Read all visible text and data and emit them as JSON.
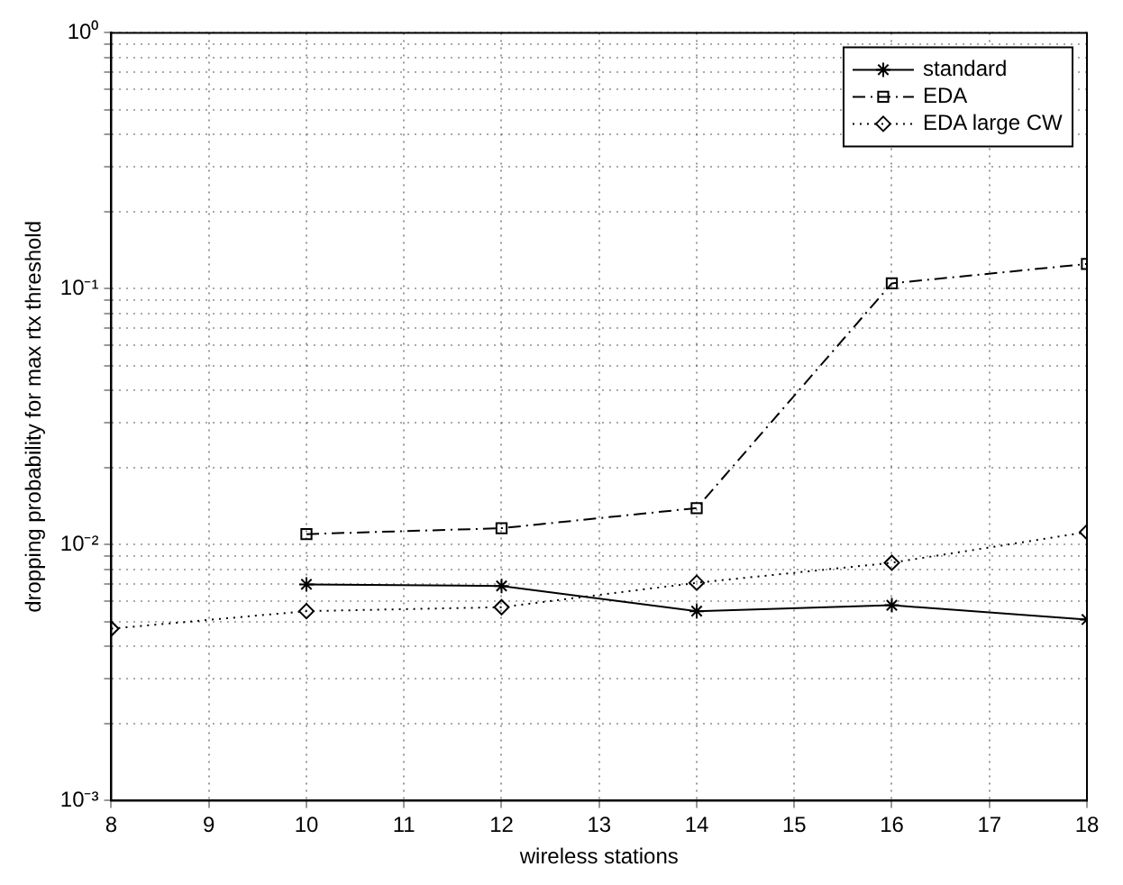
{
  "chart_data": {
    "type": "line",
    "xlabel": "wireless stations",
    "ylabel": "dropping probability for max rtx threshold",
    "x": [
      8,
      10,
      12,
      14,
      16,
      18
    ],
    "series": [
      {
        "name": "standard",
        "color": "#000000",
        "marker": "cross",
        "line_style": "solid",
        "values": [
          null,
          0.007,
          0.0069,
          0.0055,
          0.0058,
          0.0051
        ]
      },
      {
        "name": "EDA",
        "color": "#000000",
        "marker": "square",
        "line_style": "dashed",
        "values": [
          null,
          0.011,
          0.0116,
          0.0139,
          0.105,
          0.125
        ]
      },
      {
        "name": "EDA large CW",
        "color": "#000000",
        "marker": "diamond",
        "line_style": "dotted",
        "values": [
          0.0047,
          0.0055,
          0.0057,
          0.0071,
          0.0085,
          0.0112
        ]
      }
    ],
    "xlim": [
      8,
      18
    ],
    "xticks": [
      8,
      9,
      10,
      11,
      12,
      13,
      14,
      15,
      16,
      17,
      18
    ],
    "ylim": [
      0.001,
      1
    ],
    "log": "y",
    "yticks": [
      {
        "value": 0.001,
        "label": "10⁻³"
      },
      {
        "value": 0.002,
        "label": null
      },
      {
        "value": 0.003,
        "label": null
      },
      {
        "value": 0.004,
        "label": null
      },
      {
        "value": 0.005,
        "label": null
      },
      {
        "value": 0.006,
        "label": null
      },
      {
        "value": 0.007,
        "label": null
      },
      {
        "value": 0.008,
        "label": null
      },
      {
        "value": 0.009,
        "label": null
      },
      {
        "value": 0.01,
        "label": "10⁻²"
      },
      {
        "value": 0.02,
        "label": null
      },
      {
        "value": 0.03,
        "label": null
      },
      {
        "value": 0.04,
        "label": null
      },
      {
        "value": 0.05,
        "label": null
      },
      {
        "value": 0.06,
        "label": null
      },
      {
        "value": 0.07,
        "label": null
      },
      {
        "value": 0.08,
        "label": null
      },
      {
        "value": 0.09,
        "label": null
      },
      {
        "value": 0.1,
        "label": "10⁻¹"
      },
      {
        "value": 0.2,
        "label": null
      },
      {
        "value": 0.3,
        "label": null
      },
      {
        "value": 0.4,
        "label": null
      },
      {
        "value": 0.5,
        "label": null
      },
      {
        "value": 0.6,
        "label": null
      },
      {
        "value": 0.7,
        "label": null
      },
      {
        "value": 0.8,
        "label": null
      },
      {
        "value": 0.9,
        "label": null
      },
      {
        "value": 1,
        "label": "10⁰"
      }
    ],
    "grid": true,
    "legend": "top right"
  }
}
